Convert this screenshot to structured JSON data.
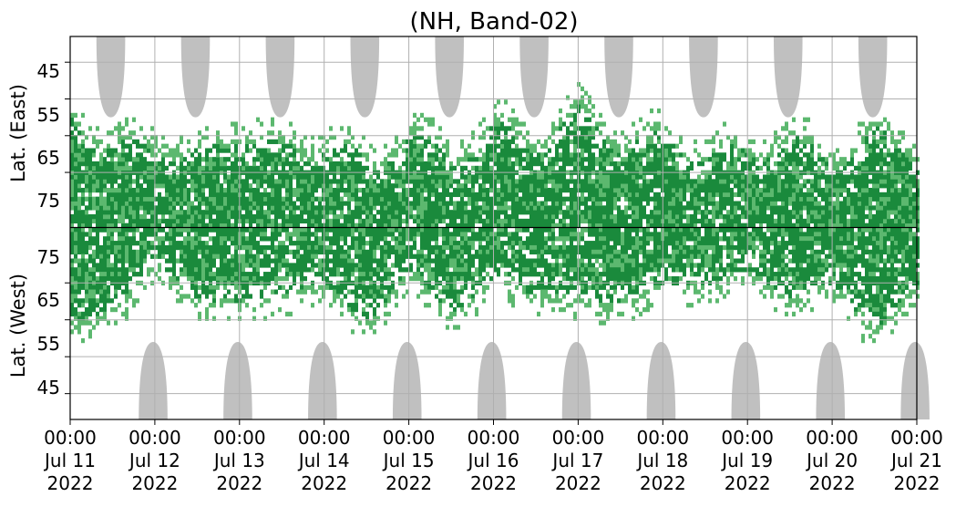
{
  "chart_data": {
    "type": "heatmap",
    "title": "(NH, Band-02)",
    "ylabel_top": "Lat. (East)",
    "ylabel_bottom": "Lat. (West)",
    "y_tick_labels_east": [
      "45",
      "55",
      "65",
      "75"
    ],
    "y_tick_labels_west": [
      "75",
      "65",
      "55",
      "45"
    ],
    "x_ticks": [
      {
        "time": "00:00",
        "date": "Jul 11",
        "year": "2022"
      },
      {
        "time": "00:00",
        "date": "Jul 12",
        "year": "2022"
      },
      {
        "time": "00:00",
        "date": "Jul 13",
        "year": "2022"
      },
      {
        "time": "00:00",
        "date": "Jul 14",
        "year": "2022"
      },
      {
        "time": "00:00",
        "date": "Jul 15",
        "year": "2022"
      },
      {
        "time": "00:00",
        "date": "Jul 16",
        "year": "2022"
      },
      {
        "time": "00:00",
        "date": "Jul 17",
        "year": "2022"
      },
      {
        "time": "00:00",
        "date": "Jul 18",
        "year": "2022"
      },
      {
        "time": "00:00",
        "date": "Jul 19",
        "year": "2022"
      },
      {
        "time": "00:00",
        "date": "Jul 20",
        "year": "2022"
      },
      {
        "time": "00:00",
        "date": "Jul 21",
        "year": "2022"
      }
    ],
    "x_range": [
      "2022-07-11 00:00",
      "2022-07-21 00:00"
    ],
    "y_range_east": [
      38,
      90
    ],
    "y_range_west": [
      90,
      38
    ],
    "grid": true,
    "colors": {
      "strong": "#1a8a3c",
      "weak": "#5cb86f",
      "nodata": "#c0c0c0",
      "divider": "#000000",
      "grid": "#b0b0b0"
    },
    "nodata_regions": {
      "east_centers_days": [
        0.48,
        1.48,
        2.48,
        3.48,
        4.48,
        5.48,
        6.48,
        7.48,
        8.48,
        9.48
      ],
      "east_min_lat": 60,
      "west_centers_days": [
        0.98,
        1.98,
        2.98,
        3.98,
        4.98,
        5.98,
        6.98,
        7.98,
        8.98,
        9.98
      ],
      "west_min_lat": 59,
      "half_width_days": 0.17
    },
    "activity_mean_lat": {
      "days": [
        0,
        0.5,
        1,
        1.5,
        2,
        2.5,
        3,
        3.5,
        4,
        4.5,
        5,
        5.5,
        6,
        6.5,
        7,
        7.5,
        8,
        8.5,
        9,
        9.5,
        10
      ],
      "east_edge": [
        58,
        68,
        66,
        70,
        62,
        68,
        66,
        72,
        64,
        70,
        62,
        66,
        58,
        66,
        64,
        70,
        68,
        66,
        70,
        64,
        68
      ],
      "west_edge": [
        59,
        70,
        76,
        72,
        65,
        74,
        70,
        66,
        74,
        68,
        72,
        74,
        66,
        72,
        70,
        76,
        74,
        72,
        70,
        64,
        70
      ]
    }
  }
}
